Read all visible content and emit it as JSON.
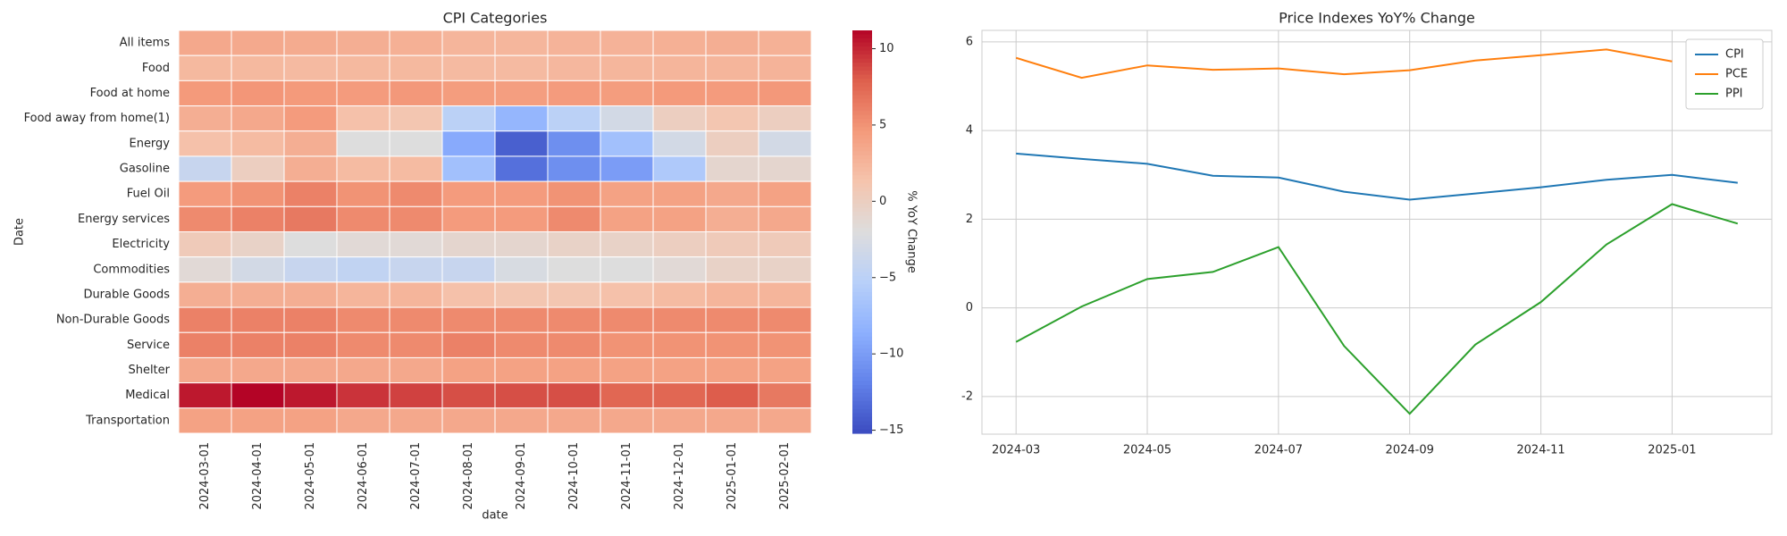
{
  "chart_data": [
    {
      "type": "heatmap",
      "title": "CPI Categories",
      "xlabel": "date",
      "ylabel": "Date",
      "colorbar_label": "% YoY Change",
      "cmap": "coolwarm",
      "columns": [
        "2024-03-01",
        "2024-04-01",
        "2024-05-01",
        "2024-06-01",
        "2024-07-01",
        "2024-08-01",
        "2024-09-01",
        "2024-10-01",
        "2024-11-01",
        "2024-12-01",
        "2025-01-01",
        "2025-02-01"
      ],
      "rows": [
        "All items",
        "Food",
        "Food at home",
        "Food away from home(1)",
        "Energy",
        "Gasoline",
        "Fuel Oil",
        "Energy services",
        "Electricity",
        "Commodities",
        "Durable Goods",
        "Non-Durable Goods",
        "Service",
        "Shelter",
        "Medical",
        "Transportation"
      ],
      "values": [
        [
          3.5,
          3.4,
          3.3,
          3.0,
          2.9,
          2.5,
          2.4,
          2.6,
          2.7,
          2.9,
          3.0,
          2.8
        ],
        [
          2.2,
          2.2,
          2.1,
          2.2,
          2.2,
          2.1,
          2.1,
          2.3,
          2.4,
          2.5,
          2.5,
          2.6
        ],
        [
          4.6,
          4.8,
          4.6,
          4.5,
          4.7,
          4.4,
          4.3,
          4.5,
          4.4,
          4.6,
          4.5,
          4.7
        ],
        [
          3.0,
          3.5,
          4.5,
          1.5,
          1.0,
          -5,
          -8,
          -5,
          -3,
          0,
          1,
          0
        ],
        [
          1.5,
          2,
          3,
          -2,
          -2,
          -9,
          -14,
          -11,
          -7,
          -3,
          0,
          -3
        ],
        [
          -4,
          0,
          3,
          2,
          2,
          -7,
          -13,
          -11,
          -10,
          -6,
          -1,
          -1
        ],
        [
          4.5,
          5,
          6,
          5,
          5.5,
          4.5,
          4.5,
          5,
          4,
          4,
          3.5,
          4
        ],
        [
          5.5,
          6,
          6.5,
          5.5,
          5.5,
          4.5,
          4.5,
          5.5,
          4,
          4,
          3,
          3.5
        ],
        [
          0.5,
          -0.5,
          -2,
          -1.5,
          -1.5,
          -1,
          -1,
          -0.5,
          -0.5,
          0,
          0.5,
          0.5
        ],
        [
          -1.5,
          -3,
          -4,
          -4.5,
          -4,
          -4,
          -2.5,
          -2,
          -2,
          -1.5,
          -0.5,
          -0.5
        ],
        [
          3,
          3,
          3,
          2.5,
          2.5,
          1.5,
          1,
          1,
          1.5,
          2,
          2.5,
          2.5
        ],
        [
          6,
          6,
          6,
          5.5,
          5.5,
          5.5,
          5.5,
          5.5,
          5.5,
          5.5,
          5.5,
          5.5
        ],
        [
          6,
          6,
          6,
          5.5,
          5.5,
          6,
          5.5,
          5.5,
          5,
          5,
          5,
          5
        ],
        [
          3.5,
          3.5,
          3.5,
          3.5,
          3.5,
          4,
          4,
          4,
          4,
          4,
          4,
          4
        ],
        [
          10.5,
          11.2,
          10.5,
          9.5,
          9,
          8.5,
          8.5,
          8.5,
          7.5,
          7.5,
          8,
          6.5
        ],
        [
          4,
          4,
          4,
          3.5,
          3.5,
          3.5,
          3.5,
          3.5,
          3.5,
          3.5,
          3.5,
          3.5
        ]
      ],
      "clim": [
        -15.2,
        11.2
      ],
      "cticks": [
        {
          "value": -15,
          "label": "−15"
        },
        {
          "value": -10,
          "label": "−10"
        },
        {
          "value": -5,
          "label": "−5"
        },
        0,
        5,
        10
      ]
    },
    {
      "type": "line",
      "title": "Price Indexes YoY% Change",
      "x": [
        "2024-03",
        "2024-04",
        "2024-05",
        "2024-06",
        "2024-07",
        "2024-08",
        "2024-09",
        "2024-10",
        "2024-11",
        "2024-12",
        "2025-01",
        "2025-02"
      ],
      "xticks": [
        "2024-03",
        "2024-05",
        "2024-07",
        "2024-09",
        "2024-11",
        "2025-01"
      ],
      "ylim": [
        -2.85,
        6.26
      ],
      "yticks": [
        -2,
        0,
        2,
        4,
        6
      ],
      "grid": true,
      "legend": "upper right",
      "series": [
        {
          "name": "CPI",
          "color": "#1f77b4",
          "values": [
            3.48,
            3.36,
            3.25,
            2.98,
            2.94,
            2.62,
            2.44,
            2.58,
            2.72,
            2.89,
            3.0,
            2.82
          ]
        },
        {
          "name": "PCE",
          "color": "#ff7f0e",
          "values": [
            5.64,
            5.19,
            5.47,
            5.37,
            5.4,
            5.27,
            5.36,
            5.58,
            5.7,
            5.83,
            5.56,
            null
          ]
        },
        {
          "name": "PPI",
          "color": "#2ca02c",
          "values": [
            -0.77,
            0.03,
            0.65,
            0.81,
            1.37,
            -0.86,
            -2.39,
            -0.83,
            0.13,
            1.43,
            2.34,
            1.9
          ]
        }
      ]
    }
  ]
}
